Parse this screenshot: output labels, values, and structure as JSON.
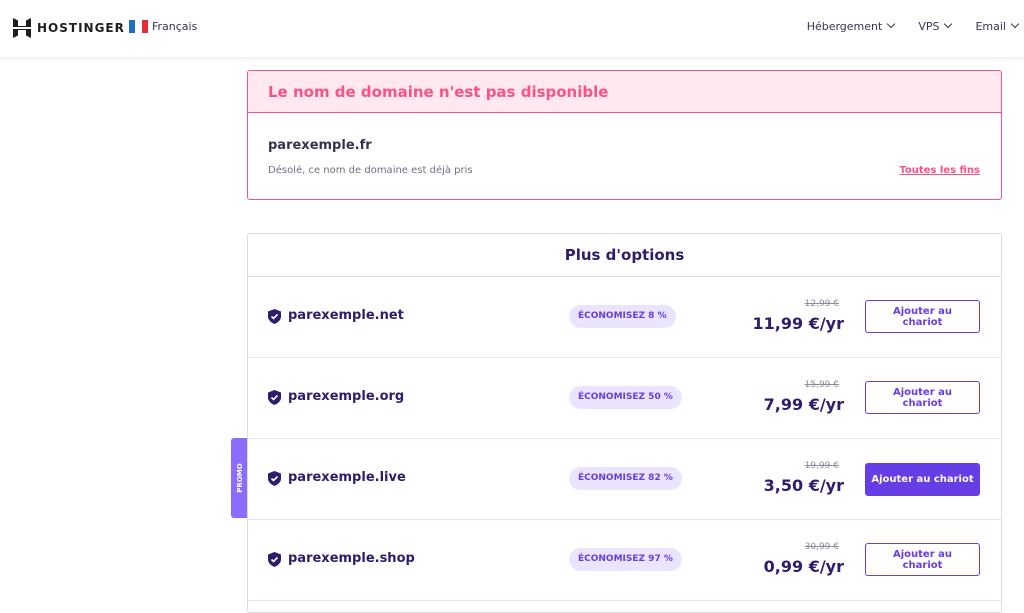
{
  "header": {
    "brand": "HOSTINGER",
    "language": "Français",
    "nav": [
      "Hébergement",
      "VPS",
      "Email"
    ]
  },
  "error": {
    "title": "Le nom de domaine n'est pas disponible",
    "domain": "parexemple.fr",
    "message": "Désolé, ce nom de domaine est déjà pris",
    "link": "Toutes les fins"
  },
  "options": {
    "title": "Plus d'options",
    "promo_label": "PROMO",
    "rows": [
      {
        "domain": "parexemple.net",
        "badge": "ÉCONOMISEZ 8 %",
        "old_price": "12,99 €",
        "price": "11,99 €/yr",
        "button": "Ajouter au chariot",
        "primary": false
      },
      {
        "domain": "parexemple.org",
        "badge": "ÉCONOMISEZ 50 %",
        "old_price": "15,99 €",
        "price": "7,99 €/yr",
        "button": "Ajouter au chariot",
        "primary": false
      },
      {
        "domain": "parexemple.live",
        "badge": "ÉCONOMISEZ 82 %",
        "old_price": "19,99 €",
        "price": "3,50 €/yr",
        "button": "Ajouter au chariot",
        "primary": true
      },
      {
        "domain": "parexemple.shop",
        "badge": "ÉCONOMISEZ 97 %",
        "old_price": "30,99 €",
        "price": "0,99 €/yr",
        "button": "Ajouter au chariot",
        "primary": false
      }
    ]
  },
  "colors": {
    "accent": "#673de6",
    "error": "#fc5185",
    "text": "#2f1c6a"
  }
}
